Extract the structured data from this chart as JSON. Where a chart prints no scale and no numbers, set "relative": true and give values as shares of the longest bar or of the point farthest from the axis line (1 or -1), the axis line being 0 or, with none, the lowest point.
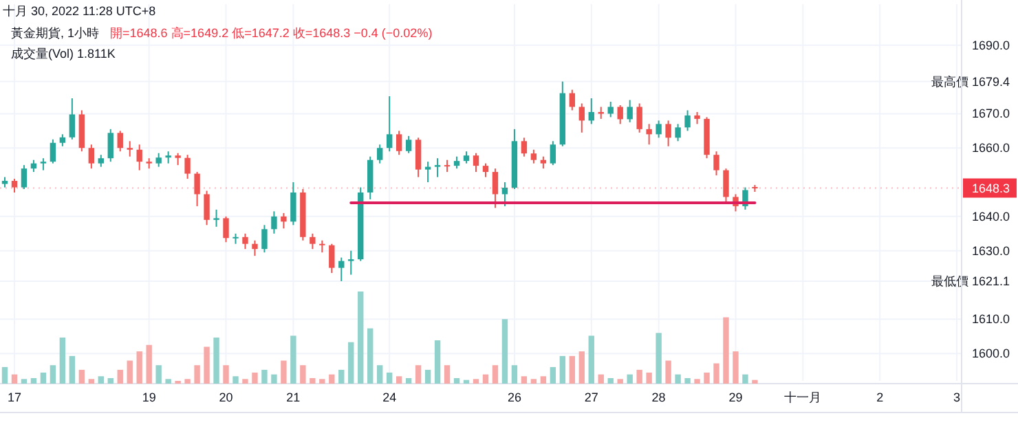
{
  "chart_data": [
    {
      "type": "candlestick",
      "title": "黃金期貨, 1小時",
      "annotations": [
        "十月 30, 2022 11:28 UTC+8",
        "開=1648.6  高=1649.2  低=1647.2  收=1648.3  −0.4 (−0.02%)"
      ],
      "categories": [
        null,
        "17",
        null,
        null,
        null,
        null,
        null,
        null,
        null,
        null,
        null,
        null,
        null,
        null,
        null,
        "19",
        null,
        null,
        null,
        null,
        null,
        null,
        null,
        "20",
        null,
        null,
        null,
        null,
        null,
        null,
        "21",
        null,
        null,
        null,
        null,
        null,
        null,
        null,
        null,
        null,
        "24",
        null,
        null,
        null,
        null,
        null,
        null,
        null,
        null,
        null,
        null,
        null,
        null,
        "26",
        null,
        null,
        null,
        null,
        null,
        null,
        null,
        "27",
        null,
        null,
        null,
        null,
        null,
        null,
        "28",
        null,
        null,
        null,
        null,
        null,
        null,
        null,
        "29",
        null,
        null,
        null,
        null,
        null,
        null,
        "十一月",
        null,
        null,
        null,
        null,
        null,
        null,
        null,
        "2",
        null,
        null,
        null,
        null,
        null,
        null,
        null,
        "3"
      ],
      "ohlc": [
        [
          1649.5,
          1651.5,
          1648.5,
          1650.4
        ],
        [
          1650.4,
          1651.0,
          1647.0,
          1648.5
        ],
        [
          1648.5,
          1655.0,
          1648.0,
          1654.0
        ],
        [
          1654.0,
          1656.5,
          1653.0,
          1655.5
        ],
        [
          1655.5,
          1657.0,
          1653.5,
          1656.0
        ],
        [
          1656.0,
          1662.5,
          1655.5,
          1661.5
        ],
        [
          1661.5,
          1664.0,
          1660.5,
          1663.1
        ],
        [
          1663.1,
          1674.5,
          1662.5,
          1669.8
        ],
        [
          1669.8,
          1671.0,
          1659.0,
          1660.0
        ],
        [
          1660.0,
          1661.0,
          1654.0,
          1655.5
        ],
        [
          1655.5,
          1658.0,
          1654.5,
          1657.0
        ],
        [
          1657.0,
          1665.5,
          1656.0,
          1664.4
        ],
        [
          1664.4,
          1665.0,
          1659.0,
          1660.0
        ],
        [
          1660.0,
          1662.0,
          1657.5,
          1659.5
        ],
        [
          1659.5,
          1661.0,
          1653.5,
          1656.0
        ],
        [
          1656.0,
          1657.0,
          1654.0,
          1655.5
        ],
        [
          1655.5,
          1658.5,
          1654.5,
          1657.2
        ],
        [
          1657.2,
          1659.0,
          1655.5,
          1657.8
        ],
        [
          1657.8,
          1658.5,
          1655.0,
          1657.1
        ],
        [
          1657.1,
          1658.0,
          1651.0,
          1652.5
        ],
        [
          1652.5,
          1653.0,
          1643.0,
          1646.5
        ],
        [
          1646.5,
          1647.5,
          1637.5,
          1639.0
        ],
        [
          1639.0,
          1642.0,
          1637.0,
          1639.5
        ],
        [
          1639.5,
          1640.0,
          1632.5,
          1633.7
        ],
        [
          1633.7,
          1635.0,
          1632.0,
          1634.0
        ],
        [
          1634.0,
          1635.0,
          1630.5,
          1632.0
        ],
        [
          1632.0,
          1633.0,
          1628.5,
          1630.5
        ],
        [
          1630.5,
          1637.5,
          1629.5,
          1636.3
        ],
        [
          1636.3,
          1641.5,
          1635.0,
          1640.0
        ],
        [
          1640.0,
          1641.0,
          1636.5,
          1638.5
        ],
        [
          1638.5,
          1650.0,
          1637.5,
          1647.0
        ],
        [
          1647.0,
          1648.0,
          1633.0,
          1634.0
        ],
        [
          1634.0,
          1635.0,
          1630.5,
          1632.0
        ],
        [
          1632.0,
          1633.0,
          1629.5,
          1631.6
        ],
        [
          1631.6,
          1632.0,
          1623.5,
          1625.0
        ],
        [
          1625.0,
          1628.0,
          1621.1,
          1627.0
        ],
        [
          1627.0,
          1630.0,
          1623.0,
          1627.5
        ],
        [
          1627.5,
          1648.5,
          1627.0,
          1647.0
        ],
        [
          1647.0,
          1657.5,
          1645.0,
          1656.5
        ],
        [
          1656.5,
          1661.0,
          1655.5,
          1660.0
        ],
        [
          1660.0,
          1675.1,
          1659.0,
          1664.0
        ],
        [
          1664.0,
          1665.0,
          1658.0,
          1659.1
        ],
        [
          1659.1,
          1663.5,
          1658.5,
          1662.4
        ],
        [
          1662.4,
          1663.0,
          1651.5,
          1653.7
        ],
        [
          1653.7,
          1656.0,
          1650.0,
          1654.5
        ],
        [
          1654.5,
          1657.0,
          1651.5,
          1655.0
        ],
        [
          1655.0,
          1656.5,
          1653.0,
          1654.8
        ],
        [
          1654.8,
          1657.5,
          1654.0,
          1656.2
        ],
        [
          1656.2,
          1659.0,
          1655.5,
          1657.8
        ],
        [
          1657.8,
          1658.5,
          1653.0,
          1654.8
        ],
        [
          1654.8,
          1655.5,
          1651.5,
          1653.0
        ],
        [
          1653.0,
          1654.0,
          1642.5,
          1646.5
        ],
        [
          1646.5,
          1650.0,
          1643.0,
          1648.4
        ],
        [
          1648.4,
          1665.5,
          1648.0,
          1662.0
        ],
        [
          1662.0,
          1663.0,
          1657.5,
          1658.4
        ],
        [
          1658.4,
          1659.5,
          1655.5,
          1656.5
        ],
        [
          1656.5,
          1657.5,
          1654.0,
          1655.5
        ],
        [
          1655.5,
          1662.0,
          1655.0,
          1661.0
        ],
        [
          1661.0,
          1679.4,
          1660.5,
          1676.0
        ],
        [
          1676.0,
          1677.0,
          1671.0,
          1672.0
        ],
        [
          1672.0,
          1673.0,
          1664.5,
          1668.0
        ],
        [
          1668.0,
          1674.5,
          1667.0,
          1670.5
        ],
        [
          1670.5,
          1672.0,
          1668.5,
          1670.0
        ],
        [
          1670.0,
          1673.5,
          1669.0,
          1672.0
        ],
        [
          1672.0,
          1672.5,
          1667.0,
          1668.4
        ],
        [
          1668.4,
          1674.0,
          1667.5,
          1672.0
        ],
        [
          1672.0,
          1673.0,
          1664.5,
          1665.5
        ],
        [
          1665.5,
          1667.0,
          1661.0,
          1664.0
        ],
        [
          1664.0,
          1668.0,
          1663.0,
          1667.0
        ],
        [
          1667.0,
          1668.0,
          1660.5,
          1663.0
        ],
        [
          1663.0,
          1667.0,
          1662.0,
          1666.0
        ],
        [
          1666.0,
          1671.0,
          1665.0,
          1669.5
        ],
        [
          1669.5,
          1670.5,
          1667.0,
          1668.5
        ],
        [
          1668.5,
          1669.0,
          1657.0,
          1658.0
        ],
        [
          1658.0,
          1659.0,
          1652.0,
          1653.5
        ],
        [
          1653.5,
          1654.0,
          1644.0,
          1645.7
        ],
        [
          1645.7,
          1646.5,
          1641.5,
          1643.0
        ],
        [
          1643.0,
          1648.5,
          1642.0,
          1647.7
        ],
        [
          1648.6,
          1649.2,
          1647.2,
          1648.3
        ],
        null,
        null,
        null,
        null,
        null,
        null,
        null,
        null,
        null,
        null,
        null,
        null,
        null,
        null,
        null,
        null,
        null,
        null,
        null,
        null,
        null
      ],
      "series": [
        {
          "type": "line",
          "color": "#dc1f5c",
          "values": [
            null,
            null,
            null,
            null,
            null,
            null,
            null,
            null,
            null,
            null,
            null,
            null,
            null,
            null,
            null,
            null,
            null,
            null,
            null,
            null,
            null,
            null,
            null,
            null,
            null,
            null,
            null,
            null,
            null,
            null,
            null,
            null,
            null,
            null,
            null,
            null,
            1644,
            1644,
            1644,
            1644,
            1644,
            1644,
            1644,
            1644,
            1644,
            1644,
            1644,
            1644,
            1644,
            1644,
            1644,
            1644,
            1644,
            1644,
            1644,
            1644,
            1644,
            1644,
            1644,
            1644,
            1644,
            1644,
            1644,
            1644,
            1644,
            1644,
            1644,
            1644,
            1644,
            1644,
            1644,
            1644,
            1644,
            1644,
            1644,
            1644,
            1644,
            1644,
            1644,
            null,
            null,
            null,
            null,
            null,
            null,
            null,
            null,
            null,
            null,
            null,
            null,
            null,
            null,
            null,
            null,
            null,
            null,
            null,
            null,
            null
          ]
        }
      ],
      "ref_lines": [
        {
          "axis": "y",
          "value": 1648.3,
          "label": "1648.3",
          "color": "#f23645",
          "line_style": "dotted"
        }
      ],
      "ylim": [
        1592,
        1702
      ],
      "yticks": [
        {
          "value": 1600,
          "label": "1600.0"
        },
        {
          "value": 1610,
          "label": "1610.0"
        },
        {
          "value": 1630,
          "label": "1630.0"
        },
        {
          "value": 1640,
          "label": "1640.0"
        },
        {
          "value": 1660,
          "label": "1660.0"
        },
        {
          "value": 1670,
          "label": "1670.0"
        },
        {
          "value": 1690,
          "label": "1690.0"
        },
        {
          "value": 1679.4,
          "label": "最高價  1679.4"
        },
        {
          "value": 1621.1,
          "label": "最低價  1621.1"
        }
      ],
      "grid": true
    },
    {
      "type": "bar",
      "title": "成交量(Vol)  1.811K",
      "relative": true,
      "categories": [
        null,
        null,
        null,
        null,
        null,
        null,
        null,
        null,
        null,
        null,
        null,
        null,
        null,
        null,
        null,
        null,
        null,
        null,
        null,
        null,
        null,
        null,
        null,
        null,
        null,
        null,
        null,
        null,
        null,
        null,
        null,
        null,
        null,
        null,
        null,
        null,
        null,
        null,
        null,
        null,
        null,
        null,
        null,
        null,
        null,
        null,
        null,
        null,
        null,
        null,
        null,
        null,
        null,
        null,
        null,
        null,
        null,
        null,
        null,
        null,
        null,
        null,
        null,
        null,
        null,
        null,
        null,
        null,
        null,
        null,
        null,
        null,
        null,
        null,
        null,
        null,
        null,
        null,
        null,
        null,
        null,
        null,
        null,
        null,
        null,
        null,
        null,
        null,
        null,
        null,
        null,
        null,
        null,
        null,
        null,
        null,
        null,
        null,
        null,
        null
      ],
      "values": [
        0.18,
        0.1,
        0.05,
        0.06,
        0.12,
        0.2,
        0.5,
        0.3,
        0.15,
        0.05,
        0.08,
        0.06,
        0.15,
        0.25,
        0.35,
        0.42,
        0.2,
        0.05,
        0.03,
        0.05,
        0.2,
        0.4,
        0.5,
        0.2,
        0.08,
        0.05,
        0.12,
        0.15,
        0.1,
        0.25,
        0.52,
        0.2,
        0.06,
        0.05,
        0.1,
        0.15,
        0.45,
        1,
        0.6,
        0.2,
        0.12,
        0.08,
        0.06,
        0.2,
        0.15,
        0.47,
        0.2,
        0.06,
        0.04,
        0.05,
        0.1,
        0.2,
        0.7,
        0.2,
        0.08,
        0.05,
        0.08,
        0.18,
        0.3,
        0.3,
        0.35,
        0.52,
        0.1,
        0.06,
        0.05,
        0.1,
        0.15,
        0.12,
        0.55,
        0.25,
        0.1,
        0.06,
        0.05,
        0.12,
        0.22,
        0.72,
        0.35,
        0.1,
        0.04,
        null,
        null,
        null,
        null,
        null,
        null,
        null,
        null,
        null,
        null,
        null,
        null,
        null,
        null,
        null,
        null,
        null,
        null,
        null,
        null,
        null
      ],
      "colors": [
        "#92d2cc",
        "#f7a9a7",
        "#92d2cc",
        "#92d2cc",
        "#92d2cc",
        "#92d2cc",
        "#92d2cc",
        "#92d2cc",
        "#f7a9a7",
        "#f7a9a7",
        "#92d2cc",
        "#92d2cc",
        "#f7a9a7",
        "#f7a9a7",
        "#f7a9a7",
        "#f7a9a7",
        "#92d2cc",
        "#92d2cc",
        "#f7a9a7",
        "#f7a9a7",
        "#f7a9a7",
        "#f7a9a7",
        "#92d2cc",
        "#f7a9a7",
        "#92d2cc",
        "#f7a9a7",
        "#f7a9a7",
        "#92d2cc",
        "#92d2cc",
        "#f7a9a7",
        "#92d2cc",
        "#f7a9a7",
        "#f7a9a7",
        "#f7a9a7",
        "#f7a9a7",
        "#92d2cc",
        "#92d2cc",
        "#92d2cc",
        "#92d2cc",
        "#92d2cc",
        "#92d2cc",
        "#f7a9a7",
        "#92d2cc",
        "#f7a9a7",
        "#92d2cc",
        "#92d2cc",
        "#f7a9a7",
        "#92d2cc",
        "#92d2cc",
        "#f7a9a7",
        "#f7a9a7",
        "#f7a9a7",
        "#92d2cc",
        "#92d2cc",
        "#f7a9a7",
        "#f7a9a7",
        "#f7a9a7",
        "#92d2cc",
        "#92d2cc",
        "#f7a9a7",
        "#f7a9a7",
        "#92d2cc",
        "#f7a9a7",
        "#92d2cc",
        "#f7a9a7",
        "#92d2cc",
        "#f7a9a7",
        "#f7a9a7",
        "#92d2cc",
        "#f7a9a7",
        "#92d2cc",
        "#92d2cc",
        "#f7a9a7",
        "#f7a9a7",
        "#f7a9a7",
        "#f7a9a7",
        "#f7a9a7",
        "#92d2cc",
        "#f7a9a7",
        null,
        null,
        null,
        null,
        null,
        null,
        null,
        null,
        null,
        null,
        null,
        null,
        null,
        null,
        null,
        null,
        null,
        null,
        null,
        null,
        null
      ]
    }
  ]
}
